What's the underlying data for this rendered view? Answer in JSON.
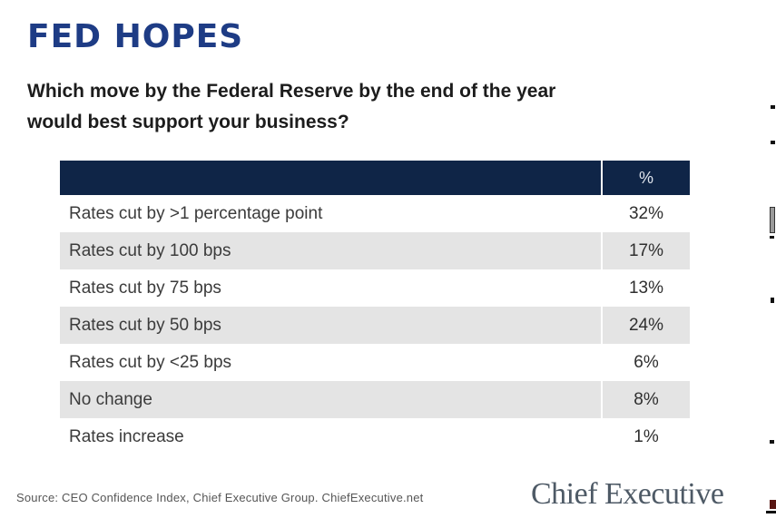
{
  "title": "FED HOPES",
  "subtitle": "Which move by the Federal Reserve by the end of the year would best support your business?",
  "colors": {
    "title_blue": "#1e3c85",
    "table_header_navy": "#0f2547",
    "row_alt_gray": "#e4e4e4",
    "logo_gray": "#4e5a66"
  },
  "table": {
    "value_column_header": "%",
    "rows": [
      {
        "label": "Rates cut by >1 percentage point",
        "value": "32%"
      },
      {
        "label": "Rates cut by 100 bps",
        "value": "17%"
      },
      {
        "label": "Rates cut by 75 bps",
        "value": "13%"
      },
      {
        "label": "Rates cut by 50 bps",
        "value": "24%"
      },
      {
        "label": "Rates cut by <25 bps",
        "value": "6%"
      },
      {
        "label": "No change",
        "value": "8%"
      },
      {
        "label": "Rates increase",
        "value": "1%"
      }
    ]
  },
  "footer": {
    "source": "Source: CEO Confidence Index, Chief Executive Group. ChiefExecutive.net",
    "logo_text": "Chief Executive"
  },
  "chart_data": {
    "type": "table",
    "title": "FED HOPES",
    "subtitle": "Which move by the Federal Reserve by the end of the year would best support your business?",
    "categories": [
      "Rates cut by >1 percentage point",
      "Rates cut by 100 bps",
      "Rates cut by 75 bps",
      "Rates cut by 50 bps",
      "Rates cut by <25 bps",
      "No change",
      "Rates increase"
    ],
    "values": [
      32,
      17,
      13,
      24,
      6,
      8,
      1
    ],
    "value_unit": "%",
    "value_column_label": "%",
    "source": "CEO Confidence Index, Chief Executive Group. ChiefExecutive.net"
  }
}
